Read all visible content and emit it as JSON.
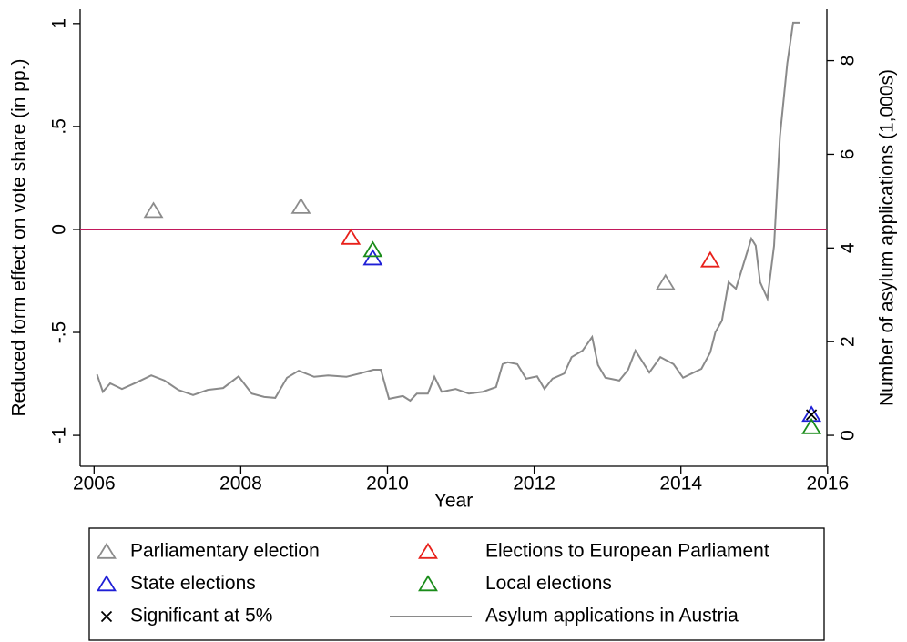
{
  "chart_data": {
    "type": "scatter",
    "x_label": "Year",
    "y_label": "Reduced form effect on vote share (in pp.)",
    "y2_label": "Number of asylum applications (1,000s)",
    "xlim": [
      2005.81,
      2015.99
    ],
    "xticks": [
      2006,
      2008,
      2010,
      2012,
      2014,
      2016
    ],
    "ylim": [
      -1.15,
      1.07
    ],
    "yticks": [
      {
        "value": -1,
        "label": "-1"
      },
      {
        "value": -0.5,
        "label": "-.5"
      },
      0,
      {
        "value": 0.5,
        "label": ".5"
      },
      1
    ],
    "y2lim": [
      -0.66,
      9.1
    ],
    "y2ticks": [
      0,
      2,
      4,
      6,
      8
    ],
    "reference_line": {
      "y": 0,
      "color": "#c2185b"
    },
    "series": [
      {
        "name": "Parliamentary election",
        "type": "scatter",
        "marker": "triangle",
        "color": "#8c8c8c",
        "x": [
          2006.81,
          2008.82,
          2013.79
        ],
        "values": [
          0.09,
          0.11,
          -0.26
        ]
      },
      {
        "name": "Elections to European Parliament",
        "type": "scatter",
        "marker": "triangle",
        "color": "#e8201a",
        "x": [
          2009.5,
          2014.4
        ],
        "values": [
          -0.04,
          -0.15
        ]
      },
      {
        "name": "State elections",
        "type": "scatter",
        "marker": "triangle",
        "color": "#1f1fd6",
        "x": [
          2009.8,
          2015.78
        ],
        "values": [
          -0.14,
          -0.9
        ]
      },
      {
        "name": "Local elections",
        "type": "scatter",
        "marker": "triangle",
        "color": "#1a8c1a",
        "x": [
          2009.8,
          2015.78
        ],
        "values": [
          -0.1,
          -0.96
        ]
      },
      {
        "name": "Significant at 5%",
        "type": "scatter",
        "marker": "x",
        "color": "#000000",
        "x": [
          2015.78
        ],
        "values": [
          -0.9
        ]
      },
      {
        "name": "Asylum applications in Austria",
        "type": "line",
        "axis": "y2",
        "color": "#8a8a8a",
        "x": [
          2006.04,
          2006.12,
          2006.22,
          2006.38,
          2006.58,
          2006.78,
          2006.96,
          2007.15,
          2007.35,
          2007.55,
          2007.76,
          2007.97,
          2008.15,
          2008.32,
          2008.47,
          2008.63,
          2008.79,
          2009.0,
          2009.19,
          2009.44,
          2009.62,
          2009.81,
          2009.91,
          2010.02,
          2010.21,
          2010.31,
          2010.4,
          2010.55,
          2010.64,
          2010.74,
          2010.93,
          2011.11,
          2011.3,
          2011.48,
          2011.57,
          2011.64,
          2011.77,
          2011.89,
          2012.04,
          2012.14,
          2012.25,
          2012.41,
          2012.51,
          2012.66,
          2012.79,
          2012.87,
          2012.97,
          2013.16,
          2013.28,
          2013.38,
          2013.57,
          2013.72,
          2013.9,
          2014.03,
          2014.28,
          2014.4,
          2014.47,
          2014.56,
          2014.65,
          2014.75,
          2014.96,
          2015.02,
          2015.08,
          2015.18,
          2015.27,
          2015.35,
          2015.45,
          2015.53,
          2015.62
        ],
        "values": [
          1.3,
          0.93,
          1.11,
          0.99,
          1.13,
          1.28,
          1.17,
          0.97,
          0.86,
          0.97,
          1.01,
          1.26,
          0.89,
          0.82,
          0.8,
          1.23,
          1.38,
          1.25,
          1.28,
          1.25,
          1.32,
          1.4,
          1.4,
          0.78,
          0.84,
          0.74,
          0.89,
          0.89,
          1.25,
          0.93,
          0.99,
          0.89,
          0.93,
          1.03,
          1.52,
          1.56,
          1.52,
          1.21,
          1.26,
          0.99,
          1.21,
          1.32,
          1.67,
          1.81,
          2.1,
          1.5,
          1.23,
          1.17,
          1.4,
          1.81,
          1.34,
          1.67,
          1.52,
          1.23,
          1.42,
          1.77,
          2.2,
          2.45,
          3.27,
          3.13,
          4.2,
          4.05,
          3.27,
          2.92,
          4.05,
          6.38,
          7.94,
          8.81,
          8.81
        ]
      }
    ]
  }
}
